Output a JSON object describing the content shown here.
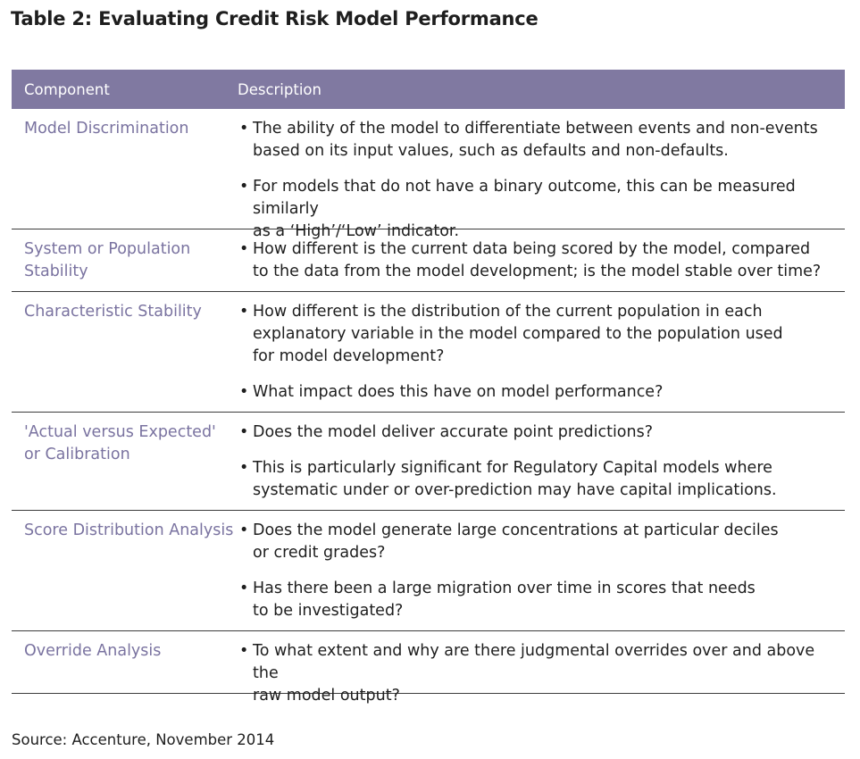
{
  "title": "Table 2: Evaluating Credit Risk Model Performance",
  "header": {
    "component": "Component",
    "description": "Description"
  },
  "rows": [
    {
      "component": "Model Discrimination",
      "bullets": [
        "The ability of the model to differentiate between events and non-events\nbased on its input values, such as defaults and non-defaults.",
        "For models that do not have a binary outcome, this can be measured similarly\nas a ‘High’/‘Low’ indicator."
      ]
    },
    {
      "component": "System or Population\nStability",
      "bullets": [
        "How different is the current data being scored by the model, compared\nto the data from the model development; is the model stable over time?"
      ]
    },
    {
      "component": "Characteristic Stability",
      "bullets": [
        "How different is the distribution of the current population in each\nexplanatory variable in the model compared to the population used\nfor model development?",
        "What impact does this have on model performance?"
      ]
    },
    {
      "component": "'Actual versus Expected'\nor Calibration",
      "bullets": [
        "Does the model deliver accurate point predictions?",
        "This is particularly significant for Regulatory Capital models where\nsystematic under or over-prediction may have capital implications."
      ]
    },
    {
      "component": "Score Distribution Analysis",
      "bullets": [
        "Does the model generate large concentrations at particular deciles\nor credit grades?",
        "Has there been a large migration over time in scores that needs\nto be investigated?"
      ]
    },
    {
      "component": "Override Analysis",
      "bullets": [
        "To what extent and why are there judgmental overrides over and above the\nraw model output?"
      ]
    }
  ],
  "source": "Source: Accenture, November 2014",
  "colors": {
    "header_bg": "#8079a1",
    "component_text": "#7a73a0"
  }
}
